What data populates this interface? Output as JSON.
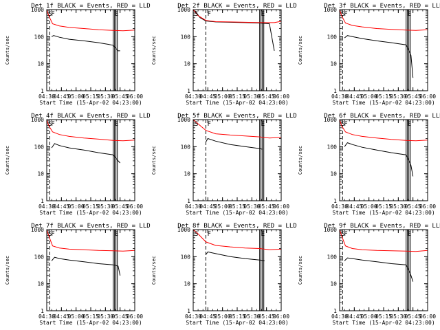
{
  "figure": {
    "ylabel": "Counts/sec",
    "xlabel": "Start Time (15-Apr-02 04:23:00)",
    "ytick_labels": [
      "1000",
      "100",
      "10",
      "1"
    ],
    "xtick_labels": [
      "04:30",
      "04:45",
      "05:00",
      "05:15",
      "05:30",
      "05:45",
      "06:00"
    ],
    "colors": {
      "events": "#000000",
      "lld": "#ff0000",
      "axes": "#000000",
      "background": "#ffffff"
    },
    "marker_letters": [
      "S",
      "F",
      "E"
    ]
  },
  "chart_data": [
    {
      "type": "line",
      "title": "Det 1f BLACK = Events, RED = LLD",
      "xlabel": "Start Time (15-Apr-02 04:23:00)",
      "ylabel": "Counts/sec",
      "ylim": [
        1,
        1000
      ],
      "yscale": "log",
      "xlim_min": [
        7,
        97
      ],
      "markers_min": [
        {
          "label": "S",
          "x": 7,
          "style": "dotted"
        },
        {
          "label": "F",
          "x": 10,
          "style": "dashed"
        },
        {
          "label": "E",
          "x": 75,
          "style": "solid"
        }
      ],
      "series": [
        {
          "name": "Events",
          "x": [
            12,
            14,
            20,
            30,
            45,
            60,
            70,
            75,
            80,
            82
          ],
          "values": [
            100,
            110,
            95,
            80,
            70,
            60,
            52,
            48,
            30,
            30
          ]
        },
        {
          "name": "LLD",
          "x": [
            7,
            9,
            13,
            20,
            30,
            45,
            60,
            75,
            85,
            97
          ],
          "values": [
            1000,
            600,
            300,
            250,
            220,
            200,
            180,
            170,
            165,
            175
          ]
        }
      ]
    },
    {
      "type": "line",
      "title": "Det 2f BLACK = Events, RED = LLD",
      "xlabel": "Start Time (15-Apr-02 04:23:00)",
      "ylabel": "Counts/sec",
      "ylim": [
        1,
        1000
      ],
      "yscale": "log",
      "xlim_min": [
        7,
        97
      ],
      "markers_min": [
        {
          "label": "S",
          "x": 7,
          "style": "dotted"
        },
        {
          "label": "F",
          "x": 20,
          "style": "dashed"
        },
        {
          "label": "E",
          "x": 75,
          "style": "solid"
        }
      ],
      "series": [
        {
          "name": "Events",
          "x": [
            9,
            14,
            20,
            30,
            45,
            60,
            75,
            85,
            90
          ],
          "values": [
            900,
            500,
            380,
            350,
            340,
            330,
            320,
            300,
            30
          ]
        },
        {
          "name": "LLD",
          "x": [
            7,
            12,
            20,
            30,
            45,
            60,
            75,
            90,
            97
          ],
          "values": [
            1000,
            600,
            400,
            360,
            350,
            340,
            330,
            330,
            370
          ]
        }
      ]
    },
    {
      "type": "line",
      "title": "Det 3f BLACK = Events, RED = LLD",
      "xlabel": "Start Time (15-Apr-02 04:23:00)",
      "ylabel": "Counts/sec",
      "ylim": [
        1,
        1000
      ],
      "yscale": "log",
      "xlim_min": [
        7,
        97
      ],
      "markers_min": [
        {
          "label": "S",
          "x": 7,
          "style": "dotted"
        },
        {
          "label": "F",
          "x": 10,
          "style": "dashed"
        },
        {
          "label": "E",
          "x": 75,
          "style": "solid"
        }
      ],
      "series": [
        {
          "name": "Events",
          "x": [
            12,
            15,
            20,
            30,
            45,
            60,
            75,
            78,
            80,
            82
          ],
          "values": [
            90,
            110,
            100,
            85,
            70,
            60,
            50,
            30,
            20,
            3
          ]
        },
        {
          "name": "LLD",
          "x": [
            7,
            9,
            13,
            20,
            30,
            45,
            60,
            75,
            85,
            97
          ],
          "values": [
            1000,
            600,
            320,
            260,
            230,
            200,
            185,
            175,
            170,
            180
          ]
        }
      ]
    },
    {
      "type": "line",
      "title": "Det 4f BLACK = Events, RED = LLD",
      "xlabel": "Start Time (15-Apr-02 04:23:00)",
      "ylabel": "Counts/sec",
      "ylim": [
        1,
        1000
      ],
      "yscale": "log",
      "xlim_min": [
        7,
        97
      ],
      "markers_min": [
        {
          "label": "S",
          "x": 7,
          "style": "dotted"
        },
        {
          "label": "F",
          "x": 10,
          "style": "dashed"
        },
        {
          "label": "E",
          "x": 75,
          "style": "solid"
        }
      ],
      "series": [
        {
          "name": "Events",
          "x": [
            12,
            15,
            20,
            30,
            45,
            60,
            75,
            80,
            82
          ],
          "values": [
            90,
            130,
            110,
            90,
            75,
            60,
            50,
            30,
            25
          ]
        },
        {
          "name": "LLD",
          "x": [
            7,
            9,
            13,
            20,
            30,
            45,
            60,
            75,
            85,
            97
          ],
          "values": [
            1000,
            600,
            350,
            280,
            240,
            210,
            190,
            170,
            165,
            175
          ]
        }
      ]
    },
    {
      "type": "line",
      "title": "Det 5f BLACK = Events, RED = LLD",
      "xlabel": "Start Time (15-Apr-02 04:23:00)",
      "ylabel": "Counts/sec",
      "ylim": [
        1,
        1000
      ],
      "yscale": "log",
      "xlim_min": [
        7,
        97
      ],
      "markers_min": [
        {
          "label": "S",
          "x": 7,
          "style": "dotted"
        },
        {
          "label": "F",
          "x": 20,
          "style": "dashed"
        },
        {
          "label": "E",
          "x": 75,
          "style": "solid"
        }
      ],
      "series": [
        {
          "name": "Events",
          "x": [
            20,
            22,
            30,
            45,
            60,
            75,
            78
          ],
          "values": [
            150,
            200,
            160,
            120,
            100,
            85,
            80
          ]
        },
        {
          "name": "LLD",
          "x": [
            7,
            12,
            20,
            30,
            45,
            60,
            75,
            85,
            97
          ],
          "values": [
            1000,
            700,
            400,
            300,
            270,
            250,
            230,
            210,
            220
          ]
        }
      ]
    },
    {
      "type": "line",
      "title": "Det 6f BLACK = Events, RED = LLD",
      "xlabel": "Start Time (15-Apr-02 04:23:00)",
      "ylabel": "Counts/sec",
      "ylim": [
        1,
        1000
      ],
      "yscale": "log",
      "xlim_min": [
        7,
        97
      ],
      "markers_min": [
        {
          "label": "S",
          "x": 7,
          "style": "dotted"
        },
        {
          "label": "F",
          "x": 10,
          "style": "dashed"
        },
        {
          "label": "E",
          "x": 75,
          "style": "solid"
        }
      ],
      "series": [
        {
          "name": "Events",
          "x": [
            12,
            15,
            20,
            30,
            45,
            60,
            75,
            78,
            80,
            82
          ],
          "values": [
            100,
            140,
            120,
            95,
            75,
            60,
            50,
            30,
            20,
            8
          ]
        },
        {
          "name": "LLD",
          "x": [
            7,
            9,
            13,
            20,
            30,
            45,
            60,
            75,
            85,
            97
          ],
          "values": [
            1000,
            600,
            350,
            280,
            240,
            210,
            185,
            170,
            165,
            175
          ]
        }
      ]
    },
    {
      "type": "line",
      "title": "Det 7f BLACK = Events, RED = LLD",
      "xlabel": "Start Time (15-Apr-02 04:23:00)",
      "ylabel": "Counts/sec",
      "ylim": [
        1,
        1000
      ],
      "yscale": "log",
      "xlim_min": [
        7,
        97
      ],
      "markers_min": [
        {
          "label": "S",
          "x": 7,
          "style": "dotted"
        },
        {
          "label": "F",
          "x": 10,
          "style": "dashed"
        },
        {
          "label": "E",
          "x": 75,
          "style": "solid"
        }
      ],
      "series": [
        {
          "name": "Events",
          "x": [
            12,
            15,
            20,
            30,
            45,
            60,
            75,
            80,
            82
          ],
          "values": [
            70,
            95,
            85,
            75,
            65,
            55,
            50,
            45,
            20
          ]
        },
        {
          "name": "LLD",
          "x": [
            7,
            9,
            13,
            20,
            30,
            45,
            60,
            75,
            85,
            97
          ],
          "values": [
            1000,
            600,
            250,
            210,
            190,
            180,
            170,
            165,
            160,
            170
          ]
        }
      ]
    },
    {
      "type": "line",
      "title": "Det 8f BLACK = Events, RED = LLD",
      "xlabel": "Start Time (15-Apr-02 04:23:00)",
      "ylabel": "Counts/sec",
      "ylim": [
        1,
        1000
      ],
      "yscale": "log",
      "xlim_min": [
        7,
        97
      ],
      "markers_min": [
        {
          "label": "S",
          "x": 7,
          "style": "dotted"
        },
        {
          "label": "F",
          "x": 20,
          "style": "dashed"
        },
        {
          "label": "E",
          "x": 75,
          "style": "solid"
        }
      ],
      "series": [
        {
          "name": "Events",
          "x": [
            20,
            22,
            30,
            45,
            60,
            75,
            80
          ],
          "values": [
            120,
            150,
            130,
            100,
            85,
            75,
            70
          ]
        },
        {
          "name": "LLD",
          "x": [
            7,
            12,
            20,
            30,
            45,
            60,
            75,
            85,
            97
          ],
          "values": [
            1000,
            700,
            350,
            260,
            230,
            210,
            200,
            180,
            190
          ]
        }
      ]
    },
    {
      "type": "line",
      "title": "Det 9f BLACK = Events, RED = LLD",
      "xlabel": "Start Time (15-Apr-02 04:23:00)",
      "ylabel": "Counts/sec",
      "ylim": [
        1,
        1000
      ],
      "yscale": "log",
      "xlim_min": [
        7,
        97
      ],
      "markers_min": [
        {
          "label": "S",
          "x": 7,
          "style": "dotted"
        },
        {
          "label": "F",
          "x": 10,
          "style": "dashed"
        },
        {
          "label": "E",
          "x": 75,
          "style": "solid"
        }
      ],
      "series": [
        {
          "name": "Events",
          "x": [
            12,
            15,
            20,
            30,
            45,
            60,
            75,
            78,
            80,
            82
          ],
          "values": [
            70,
            90,
            85,
            75,
            65,
            55,
            50,
            30,
            20,
            12
          ]
        },
        {
          "name": "LLD",
          "x": [
            7,
            9,
            13,
            20,
            30,
            45,
            60,
            75,
            85,
            97
          ],
          "values": [
            1000,
            600,
            250,
            200,
            180,
            170,
            165,
            160,
            155,
            170
          ]
        }
      ]
    }
  ]
}
